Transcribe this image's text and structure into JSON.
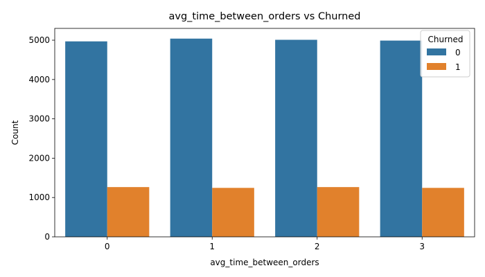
{
  "chart_data": {
    "type": "bar",
    "title": "avg_time_between_orders vs Churned",
    "xlabel": "avg_time_between_orders",
    "ylabel": "Count",
    "categories": [
      "0",
      "1",
      "2",
      "3"
    ],
    "series": [
      {
        "name": "0",
        "values": [
          4970,
          5040,
          5010,
          4990
        ]
      },
      {
        "name": "1",
        "values": [
          1265,
          1245,
          1265,
          1245
        ]
      }
    ],
    "ylim": [
      0,
      5300
    ],
    "yticks": [
      0,
      1000,
      2000,
      3000,
      4000,
      5000
    ],
    "grid": false,
    "legend": {
      "title": "Churned",
      "placement": "top-right"
    },
    "colors": [
      "#3274a1",
      "#e1812c"
    ]
  }
}
